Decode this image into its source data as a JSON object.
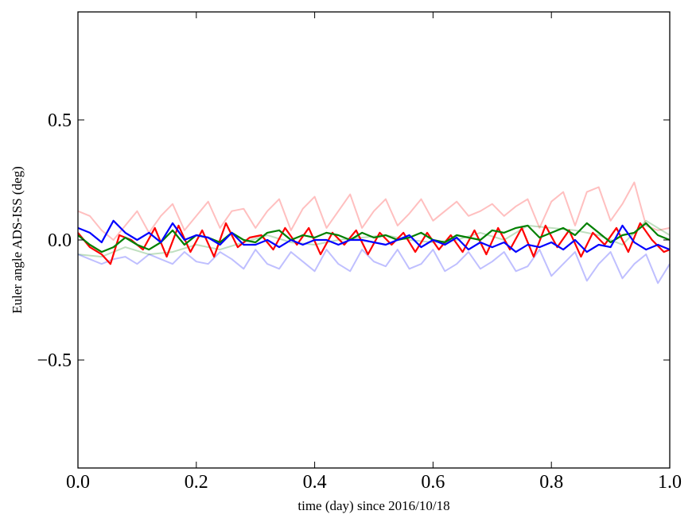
{
  "chart_data": {
    "type": "line",
    "title": "",
    "xlabel": "time (day) since 2016/10/18",
    "ylabel": "Euler angle ADS-ISS (deg)",
    "xlim": [
      0.0,
      1.0
    ],
    "ylim": [
      -0.95,
      0.95
    ],
    "xticks": [
      "0.0",
      "0.2",
      "0.4",
      "0.6",
      "0.8",
      "1.0"
    ],
    "yticks": [
      "−0.5",
      "0.0",
      "0.5"
    ],
    "grid": false,
    "legend": "none",
    "series": [
      {
        "color": "#ff0000",
        "opacity": 0.25,
        "x": [
          0.0,
          0.02,
          0.04,
          0.06,
          0.08,
          0.1,
          0.12,
          0.14,
          0.16,
          0.18,
          0.2,
          0.22,
          0.24,
          0.26,
          0.28,
          0.3,
          0.32,
          0.34,
          0.36,
          0.38,
          0.4,
          0.42,
          0.44,
          0.46,
          0.48,
          0.5,
          0.52,
          0.54,
          0.56,
          0.58,
          0.6,
          0.62,
          0.64,
          0.66,
          0.68,
          0.7,
          0.72,
          0.74,
          0.76,
          0.78,
          0.8,
          0.82,
          0.84,
          0.86,
          0.88,
          0.9,
          0.92,
          0.94,
          0.96,
          0.98,
          1.0
        ],
        "values": [
          0.12,
          0.1,
          0.04,
          0.0,
          0.06,
          0.12,
          0.03,
          0.1,
          0.15,
          0.04,
          0.1,
          0.16,
          0.05,
          0.12,
          0.13,
          0.05,
          0.12,
          0.17,
          0.04,
          0.13,
          0.18,
          0.05,
          0.12,
          0.19,
          0.05,
          0.12,
          0.17,
          0.06,
          0.11,
          0.17,
          0.08,
          0.12,
          0.16,
          0.1,
          0.12,
          0.15,
          0.1,
          0.14,
          0.17,
          0.05,
          0.16,
          0.2,
          0.06,
          0.2,
          0.22,
          0.08,
          0.15,
          0.24,
          0.06,
          0.04,
          0.05
        ]
      },
      {
        "color": "#008000",
        "opacity": 0.25,
        "x": [
          0.0,
          0.04,
          0.08,
          0.12,
          0.16,
          0.2,
          0.24,
          0.28,
          0.32,
          0.36,
          0.4,
          0.44,
          0.48,
          0.52,
          0.56,
          0.6,
          0.64,
          0.68,
          0.72,
          0.76,
          0.8,
          0.84,
          0.88,
          0.92,
          0.96,
          1.0
        ],
        "values": [
          -0.06,
          -0.07,
          -0.03,
          -0.06,
          -0.05,
          -0.02,
          -0.04,
          -0.01,
          0.02,
          -0.01,
          -0.02,
          0.0,
          0.01,
          0.02,
          0.0,
          -0.01,
          0.0,
          0.03,
          0.0,
          0.06,
          0.05,
          0.04,
          0.02,
          -0.02,
          0.08,
          0.02
        ]
      },
      {
        "color": "#0000ff",
        "opacity": 0.25,
        "x": [
          0.0,
          0.02,
          0.04,
          0.06,
          0.08,
          0.1,
          0.12,
          0.14,
          0.16,
          0.18,
          0.2,
          0.22,
          0.24,
          0.26,
          0.28,
          0.3,
          0.32,
          0.34,
          0.36,
          0.38,
          0.4,
          0.42,
          0.44,
          0.46,
          0.48,
          0.5,
          0.52,
          0.54,
          0.56,
          0.58,
          0.6,
          0.62,
          0.64,
          0.66,
          0.68,
          0.7,
          0.72,
          0.74,
          0.76,
          0.78,
          0.8,
          0.82,
          0.84,
          0.86,
          0.88,
          0.9,
          0.92,
          0.94,
          0.96,
          0.98,
          1.0
        ],
        "values": [
          -0.06,
          -0.08,
          -0.1,
          -0.08,
          -0.07,
          -0.1,
          -0.06,
          -0.08,
          -0.1,
          -0.05,
          -0.09,
          -0.1,
          -0.05,
          -0.08,
          -0.12,
          -0.04,
          -0.1,
          -0.12,
          -0.05,
          -0.09,
          -0.13,
          -0.04,
          -0.1,
          -0.13,
          -0.04,
          -0.09,
          -0.11,
          -0.04,
          -0.12,
          -0.1,
          -0.04,
          -0.13,
          -0.1,
          -0.05,
          -0.12,
          -0.09,
          -0.05,
          -0.13,
          -0.11,
          -0.04,
          -0.15,
          -0.1,
          -0.05,
          -0.17,
          -0.1,
          -0.05,
          -0.16,
          -0.1,
          -0.06,
          -0.18,
          -0.1
        ]
      },
      {
        "color": "#ff0000",
        "opacity": 1.0,
        "x": [
          0.0,
          0.02,
          0.04,
          0.055,
          0.07,
          0.09,
          0.11,
          0.13,
          0.15,
          0.17,
          0.19,
          0.21,
          0.23,
          0.25,
          0.27,
          0.29,
          0.31,
          0.33,
          0.35,
          0.37,
          0.39,
          0.41,
          0.43,
          0.45,
          0.47,
          0.49,
          0.51,
          0.53,
          0.55,
          0.57,
          0.59,
          0.61,
          0.63,
          0.65,
          0.67,
          0.69,
          0.71,
          0.73,
          0.75,
          0.77,
          0.79,
          0.81,
          0.83,
          0.85,
          0.87,
          0.89,
          0.91,
          0.93,
          0.95,
          0.97,
          0.99,
          1.0
        ],
        "values": [
          0.03,
          -0.03,
          -0.06,
          -0.1,
          0.02,
          0.0,
          -0.04,
          0.05,
          -0.07,
          0.06,
          -0.05,
          0.04,
          -0.07,
          0.07,
          -0.03,
          0.01,
          0.02,
          -0.04,
          0.05,
          -0.02,
          0.05,
          -0.06,
          0.03,
          -0.02,
          0.04,
          -0.06,
          0.03,
          -0.02,
          0.03,
          -0.05,
          0.03,
          -0.04,
          0.02,
          -0.05,
          0.04,
          -0.06,
          0.05,
          -0.04,
          0.05,
          -0.07,
          0.06,
          -0.03,
          0.04,
          -0.07,
          0.03,
          -0.02,
          0.05,
          -0.05,
          0.07,
          0.0,
          -0.05,
          -0.04
        ]
      },
      {
        "color": "#008000",
        "opacity": 1.0,
        "x": [
          0.0,
          0.02,
          0.04,
          0.06,
          0.08,
          0.1,
          0.12,
          0.14,
          0.16,
          0.18,
          0.2,
          0.22,
          0.24,
          0.26,
          0.28,
          0.3,
          0.32,
          0.34,
          0.36,
          0.38,
          0.4,
          0.42,
          0.44,
          0.46,
          0.48,
          0.5,
          0.52,
          0.54,
          0.56,
          0.58,
          0.6,
          0.62,
          0.64,
          0.66,
          0.68,
          0.7,
          0.72,
          0.74,
          0.76,
          0.78,
          0.8,
          0.82,
          0.84,
          0.86,
          0.88,
          0.9,
          0.92,
          0.94,
          0.96,
          0.98,
          1.0
        ],
        "values": [
          0.02,
          -0.02,
          -0.05,
          -0.03,
          0.01,
          -0.02,
          -0.04,
          -0.01,
          0.04,
          -0.02,
          0.02,
          0.01,
          -0.01,
          0.03,
          0.0,
          -0.01,
          0.03,
          0.04,
          0.0,
          0.02,
          0.01,
          0.03,
          0.02,
          0.0,
          0.03,
          0.01,
          0.02,
          0.0,
          0.01,
          0.03,
          0.0,
          -0.01,
          0.02,
          0.01,
          0.0,
          0.04,
          0.03,
          0.05,
          0.06,
          0.01,
          0.03,
          0.05,
          0.02,
          0.07,
          0.03,
          -0.01,
          0.02,
          0.03,
          0.07,
          0.02,
          0.0
        ]
      },
      {
        "color": "#0000ff",
        "opacity": 1.0,
        "x": [
          0.0,
          0.02,
          0.04,
          0.06,
          0.08,
          0.1,
          0.12,
          0.14,
          0.16,
          0.18,
          0.2,
          0.22,
          0.24,
          0.26,
          0.28,
          0.3,
          0.32,
          0.34,
          0.36,
          0.38,
          0.4,
          0.42,
          0.44,
          0.46,
          0.48,
          0.5,
          0.52,
          0.54,
          0.56,
          0.58,
          0.6,
          0.62,
          0.64,
          0.66,
          0.68,
          0.7,
          0.72,
          0.74,
          0.76,
          0.78,
          0.8,
          0.82,
          0.84,
          0.86,
          0.88,
          0.9,
          0.92,
          0.94,
          0.96,
          0.98,
          1.0
        ],
        "values": [
          0.05,
          0.03,
          -0.01,
          0.08,
          0.03,
          0.0,
          0.03,
          -0.01,
          0.07,
          0.0,
          0.02,
          0.01,
          -0.02,
          0.03,
          -0.02,
          -0.02,
          0.0,
          -0.03,
          0.0,
          -0.02,
          0.0,
          0.0,
          -0.02,
          0.0,
          0.0,
          -0.01,
          -0.02,
          0.0,
          0.02,
          -0.03,
          0.0,
          -0.02,
          0.01,
          -0.04,
          -0.01,
          -0.03,
          -0.01,
          -0.05,
          -0.02,
          -0.03,
          -0.01,
          -0.04,
          0.0,
          -0.05,
          -0.02,
          -0.03,
          0.06,
          -0.01,
          -0.04,
          -0.02,
          -0.04
        ]
      }
    ]
  }
}
